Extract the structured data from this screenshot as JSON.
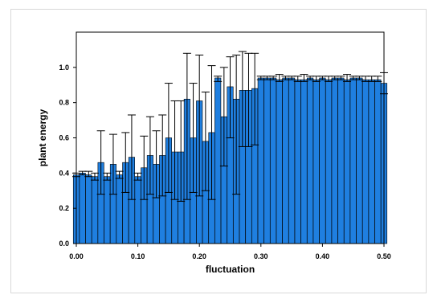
{
  "chart_data": {
    "type": "bar",
    "title": "",
    "xlabel": "fluctuation",
    "ylabel": "plant energy",
    "xlim": [
      0.0,
      0.5
    ],
    "ylim": [
      0.0,
      1.2
    ],
    "x_ticks": [
      "0.00",
      "0.10",
      "0.20",
      "0.30",
      "0.40",
      "0.50"
    ],
    "x_tick_values": [
      0.0,
      0.1,
      0.2,
      0.3,
      0.4,
      0.5
    ],
    "y_ticks": [
      "0.0",
      "0.2",
      "0.4",
      "0.6",
      "0.8",
      "1.0"
    ],
    "y_tick_values": [
      0.0,
      0.2,
      0.4,
      0.6,
      0.8,
      1.0
    ],
    "grid": false,
    "bar_color": "#1f7fe0",
    "bar_edge_color": "#000000",
    "error_bar_color": "#000000",
    "x": [
      0.0,
      0.01,
      0.02,
      0.03,
      0.04,
      0.05,
      0.06,
      0.07,
      0.08,
      0.09,
      0.1,
      0.11,
      0.12,
      0.13,
      0.14,
      0.15,
      0.16,
      0.17,
      0.18,
      0.19,
      0.2,
      0.21,
      0.22,
      0.23,
      0.24,
      0.25,
      0.26,
      0.27,
      0.28,
      0.29,
      0.3,
      0.31,
      0.32,
      0.33,
      0.34,
      0.35,
      0.36,
      0.37,
      0.38,
      0.39,
      0.4,
      0.41,
      0.42,
      0.43,
      0.44,
      0.45,
      0.46,
      0.47,
      0.48,
      0.49,
      0.5
    ],
    "values": [
      0.39,
      0.4,
      0.39,
      0.38,
      0.46,
      0.38,
      0.45,
      0.39,
      0.46,
      0.49,
      0.38,
      0.43,
      0.5,
      0.45,
      0.5,
      0.6,
      0.52,
      0.52,
      0.82,
      0.6,
      0.81,
      0.58,
      0.63,
      0.94,
      0.72,
      0.89,
      0.82,
      0.87,
      0.87,
      0.88,
      0.94,
      0.94,
      0.94,
      0.93,
      0.94,
      0.94,
      0.93,
      0.93,
      0.94,
      0.93,
      0.94,
      0.93,
      0.94,
      0.94,
      0.93,
      0.94,
      0.94,
      0.93,
      0.93,
      0.93,
      0.91
    ],
    "error_low": [
      0.38,
      0.39,
      0.38,
      0.36,
      0.28,
      0.36,
      0.28,
      0.37,
      0.29,
      0.25,
      0.36,
      0.25,
      0.28,
      0.26,
      0.27,
      0.29,
      0.25,
      0.24,
      0.25,
      0.29,
      0.27,
      0.3,
      0.25,
      0.92,
      0.44,
      0.6,
      0.28,
      0.55,
      0.55,
      0.56,
      0.93,
      0.93,
      0.93,
      0.92,
      0.93,
      0.93,
      0.92,
      0.92,
      0.93,
      0.92,
      0.93,
      0.92,
      0.93,
      0.93,
      0.92,
      0.93,
      0.93,
      0.92,
      0.92,
      0.92,
      0.85
    ],
    "error_high": [
      0.4,
      0.41,
      0.41,
      0.4,
      0.64,
      0.4,
      0.62,
      0.41,
      0.63,
      0.73,
      0.4,
      0.61,
      0.72,
      0.64,
      0.73,
      0.91,
      0.81,
      0.81,
      1.08,
      0.91,
      1.07,
      0.86,
      1.01,
      0.95,
      1.0,
      1.06,
      1.07,
      1.09,
      1.08,
      1.08,
      0.95,
      0.95,
      0.95,
      0.96,
      0.95,
      0.95,
      0.95,
      0.96,
      0.95,
      0.95,
      0.95,
      0.95,
      0.95,
      0.95,
      0.96,
      0.95,
      0.95,
      0.95,
      0.95,
      0.95,
      0.97
    ]
  }
}
